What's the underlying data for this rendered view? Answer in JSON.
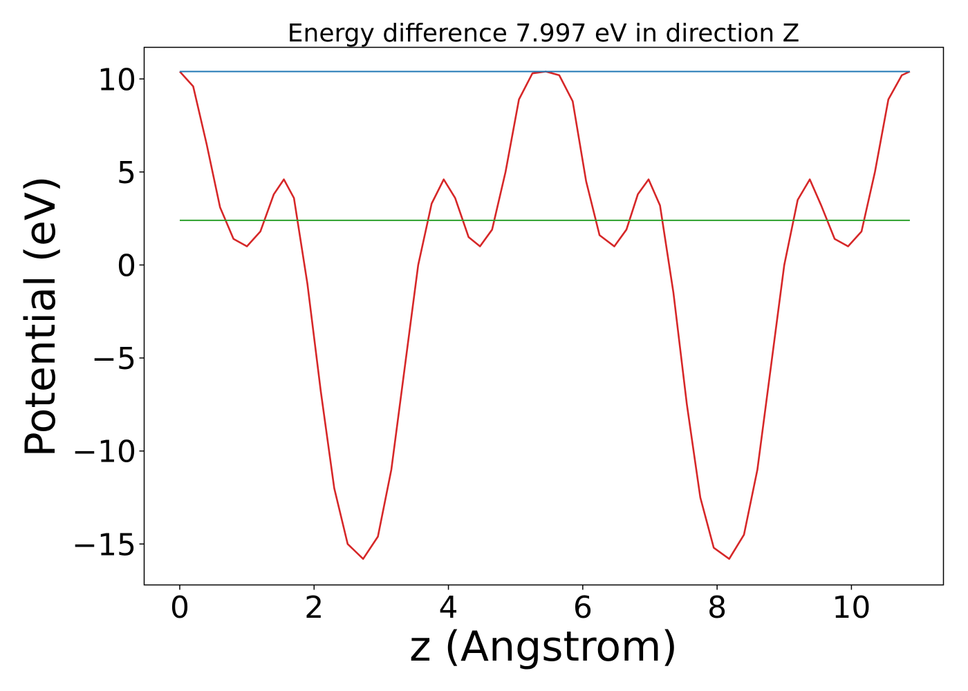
{
  "chart_data": {
    "type": "line",
    "title": "Energy difference 7.997 eV in direction Z",
    "xlabel": "z (Angstrom)",
    "ylabel": "Potential (eV)",
    "xlim": [
      -0.53,
      11.37
    ],
    "ylim": [
      -17.2,
      11.7
    ],
    "xticks": [
      0,
      2,
      4,
      6,
      8,
      10
    ],
    "xtick_labels": [
      "0",
      "2",
      "4",
      "6",
      "8",
      "10"
    ],
    "yticks": [
      -15,
      -10,
      -5,
      0,
      5,
      10
    ],
    "ytick_labels": [
      "−15",
      "−10",
      "−5",
      "0",
      "5",
      "10"
    ],
    "grid": false,
    "series": [
      {
        "color": "#d62728",
        "x": [
          0.0,
          0.2,
          0.4,
          0.6,
          0.8,
          1.0,
          1.2,
          1.4,
          1.55,
          1.7,
          1.9,
          2.1,
          2.3,
          2.5,
          2.73,
          2.95,
          3.15,
          3.35,
          3.55,
          3.75,
          3.93,
          4.1,
          4.3,
          4.47,
          4.65,
          4.85,
          5.05,
          5.25,
          5.45,
          5.65,
          5.85,
          6.05,
          6.25,
          6.47,
          6.65,
          6.82,
          6.98,
          7.15,
          7.35,
          7.55,
          7.75,
          7.95,
          8.18,
          8.4,
          8.6,
          8.8,
          9.0,
          9.2,
          9.38,
          9.55,
          9.75,
          9.95,
          10.15,
          10.35,
          10.55,
          10.75,
          10.87
        ],
        "y": [
          10.4,
          9.6,
          6.5,
          3.1,
          1.4,
          1.0,
          1.8,
          3.8,
          4.6,
          3.6,
          -1.0,
          -6.8,
          -12.0,
          -15.0,
          -15.8,
          -14.6,
          -11.0,
          -5.5,
          0.0,
          3.3,
          4.6,
          3.6,
          1.5,
          1.0,
          1.9,
          5.0,
          8.9,
          10.3,
          10.4,
          10.2,
          8.8,
          4.5,
          1.6,
          1.0,
          1.9,
          3.8,
          4.6,
          3.2,
          -1.5,
          -7.5,
          -12.5,
          -15.2,
          -15.8,
          -14.5,
          -11.0,
          -5.5,
          0.0,
          3.5,
          4.6,
          3.2,
          1.4,
          1.0,
          1.8,
          5.0,
          8.9,
          10.2,
          10.4
        ]
      },
      {
        "color": "#1f77b4",
        "x": [
          0.0,
          10.87
        ],
        "y": [
          10.4,
          10.4
        ]
      },
      {
        "color": "#2ca02c",
        "x": [
          0.0,
          10.87
        ],
        "y": [
          2.4,
          2.4
        ]
      }
    ]
  }
}
